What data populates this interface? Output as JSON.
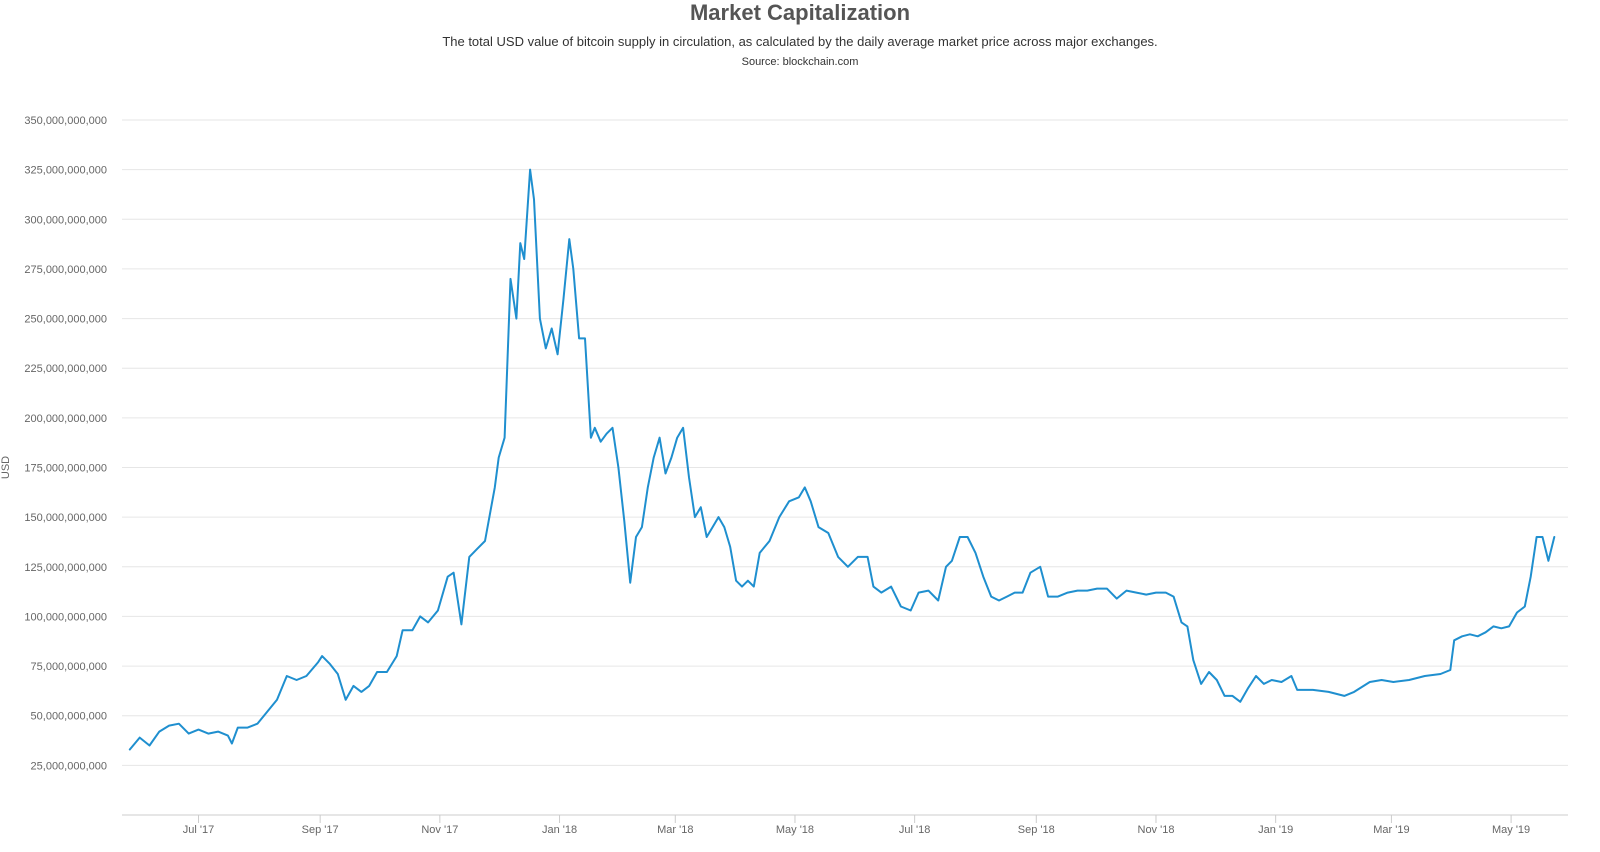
{
  "chart_data": {
    "type": "line",
    "title": "Market Capitalization",
    "subtitle": "The total USD value of bitcoin supply in circulation, as calculated by the daily average market price across major exchanges.",
    "source": "Source: blockchain.com",
    "xlabel": "",
    "ylabel": "USD",
    "ylim": [
      0,
      350000000000
    ],
    "y_ticks": [
      {
        "value": 25000000000,
        "label": "25,000,000,000"
      },
      {
        "value": 50000000000,
        "label": "50,000,000,000"
      },
      {
        "value": 75000000000,
        "label": "75,000,000,000"
      },
      {
        "value": 100000000000,
        "label": "100,000,000,000"
      },
      {
        "value": 125000000000,
        "label": "125,000,000,000"
      },
      {
        "value": 150000000000,
        "label": "150,000,000,000"
      },
      {
        "value": 175000000000,
        "label": "175,000,000,000"
      },
      {
        "value": 200000000000,
        "label": "200,000,000,000"
      },
      {
        "value": 225000000000,
        "label": "225,000,000,000"
      },
      {
        "value": 250000000000,
        "label": "250,000,000,000"
      },
      {
        "value": 275000000000,
        "label": "275,000,000,000"
      },
      {
        "value": 300000000000,
        "label": "300,000,000,000"
      },
      {
        "value": 325000000000,
        "label": "325,000,000,000"
      },
      {
        "value": 350000000000,
        "label": "350,000,000,000"
      }
    ],
    "x_range": [
      "2017-05-23",
      "2019-05-30"
    ],
    "x_ticks": [
      {
        "date": "2017-07-01",
        "label": "Jul '17"
      },
      {
        "date": "2017-09-01",
        "label": "Sep '17"
      },
      {
        "date": "2017-11-01",
        "label": "Nov '17"
      },
      {
        "date": "2018-01-01",
        "label": "Jan '18"
      },
      {
        "date": "2018-03-01",
        "label": "Mar '18"
      },
      {
        "date": "2018-05-01",
        "label": "May '18"
      },
      {
        "date": "2018-07-01",
        "label": "Jul '18"
      },
      {
        "date": "2018-09-01",
        "label": "Sep '18"
      },
      {
        "date": "2018-11-01",
        "label": "Nov '18"
      },
      {
        "date": "2019-01-01",
        "label": "Jan '19"
      },
      {
        "date": "2019-03-01",
        "label": "Mar '19"
      },
      {
        "date": "2019-05-01",
        "label": "May '19"
      }
    ],
    "grid": true,
    "legend": "none",
    "line_color": "#1f8fcf",
    "grid_color": "#e6e6e6",
    "series": [
      {
        "points": [
          [
            "2017-05-27",
            33000000000
          ],
          [
            "2017-06-01",
            39000000000
          ],
          [
            "2017-06-06",
            35000000000
          ],
          [
            "2017-06-11",
            42000000000
          ],
          [
            "2017-06-16",
            45000000000
          ],
          [
            "2017-06-21",
            46000000000
          ],
          [
            "2017-06-26",
            41000000000
          ],
          [
            "2017-07-01",
            43000000000
          ],
          [
            "2017-07-06",
            41000000000
          ],
          [
            "2017-07-11",
            42000000000
          ],
          [
            "2017-07-16",
            40000000000
          ],
          [
            "2017-07-18",
            36000000000
          ],
          [
            "2017-07-21",
            44000000000
          ],
          [
            "2017-07-26",
            44000000000
          ],
          [
            "2017-07-31",
            46000000000
          ],
          [
            "2017-08-05",
            52000000000
          ],
          [
            "2017-08-10",
            58000000000
          ],
          [
            "2017-08-15",
            70000000000
          ],
          [
            "2017-08-20",
            68000000000
          ],
          [
            "2017-08-25",
            70000000000
          ],
          [
            "2017-08-31",
            77000000000
          ],
          [
            "2017-09-02",
            80000000000
          ],
          [
            "2017-09-06",
            76000000000
          ],
          [
            "2017-09-10",
            71000000000
          ],
          [
            "2017-09-14",
            58000000000
          ],
          [
            "2017-09-18",
            65000000000
          ],
          [
            "2017-09-22",
            62000000000
          ],
          [
            "2017-09-26",
            65000000000
          ],
          [
            "2017-09-30",
            72000000000
          ],
          [
            "2017-10-05",
            72000000000
          ],
          [
            "2017-10-10",
            80000000000
          ],
          [
            "2017-10-13",
            93000000000
          ],
          [
            "2017-10-18",
            93000000000
          ],
          [
            "2017-10-22",
            100000000000
          ],
          [
            "2017-10-26",
            97000000000
          ],
          [
            "2017-10-31",
            103000000000
          ],
          [
            "2017-11-05",
            120000000000
          ],
          [
            "2017-11-08",
            122000000000
          ],
          [
            "2017-11-12",
            96000000000
          ],
          [
            "2017-11-16",
            130000000000
          ],
          [
            "2017-11-20",
            134000000000
          ],
          [
            "2017-11-24",
            138000000000
          ],
          [
            "2017-11-29",
            165000000000
          ],
          [
            "2017-12-01",
            180000000000
          ],
          [
            "2017-12-04",
            190000000000
          ],
          [
            "2017-12-07",
            270000000000
          ],
          [
            "2017-12-10",
            250000000000
          ],
          [
            "2017-12-12",
            288000000000
          ],
          [
            "2017-12-14",
            280000000000
          ],
          [
            "2017-12-17",
            325000000000
          ],
          [
            "2017-12-19",
            310000000000
          ],
          [
            "2017-12-22",
            250000000000
          ],
          [
            "2017-12-25",
            235000000000
          ],
          [
            "2017-12-28",
            245000000000
          ],
          [
            "2017-12-31",
            232000000000
          ],
          [
            "2018-01-03",
            260000000000
          ],
          [
            "2018-01-06",
            290000000000
          ],
          [
            "2018-01-08",
            275000000000
          ],
          [
            "2018-01-11",
            240000000000
          ],
          [
            "2018-01-14",
            240000000000
          ],
          [
            "2018-01-17",
            190000000000
          ],
          [
            "2018-01-19",
            195000000000
          ],
          [
            "2018-01-22",
            188000000000
          ],
          [
            "2018-01-25",
            192000000000
          ],
          [
            "2018-01-28",
            195000000000
          ],
          [
            "2018-01-31",
            175000000000
          ],
          [
            "2018-02-03",
            148000000000
          ],
          [
            "2018-02-06",
            117000000000
          ],
          [
            "2018-02-09",
            140000000000
          ],
          [
            "2018-02-12",
            145000000000
          ],
          [
            "2018-02-15",
            165000000000
          ],
          [
            "2018-02-18",
            180000000000
          ],
          [
            "2018-02-21",
            190000000000
          ],
          [
            "2018-02-24",
            172000000000
          ],
          [
            "2018-02-27",
            180000000000
          ],
          [
            "2018-03-02",
            190000000000
          ],
          [
            "2018-03-05",
            195000000000
          ],
          [
            "2018-03-08",
            170000000000
          ],
          [
            "2018-03-11",
            150000000000
          ],
          [
            "2018-03-14",
            155000000000
          ],
          [
            "2018-03-17",
            140000000000
          ],
          [
            "2018-03-20",
            145000000000
          ],
          [
            "2018-03-23",
            150000000000
          ],
          [
            "2018-03-26",
            145000000000
          ],
          [
            "2018-03-29",
            135000000000
          ],
          [
            "2018-04-01",
            118000000000
          ],
          [
            "2018-04-04",
            115000000000
          ],
          [
            "2018-04-07",
            118000000000
          ],
          [
            "2018-04-10",
            115000000000
          ],
          [
            "2018-04-13",
            132000000000
          ],
          [
            "2018-04-18",
            138000000000
          ],
          [
            "2018-04-23",
            150000000000
          ],
          [
            "2018-04-28",
            158000000000
          ],
          [
            "2018-05-03",
            160000000000
          ],
          [
            "2018-05-06",
            165000000000
          ],
          [
            "2018-05-09",
            158000000000
          ],
          [
            "2018-05-13",
            145000000000
          ],
          [
            "2018-05-18",
            142000000000
          ],
          [
            "2018-05-23",
            130000000000
          ],
          [
            "2018-05-28",
            125000000000
          ],
          [
            "2018-06-02",
            130000000000
          ],
          [
            "2018-06-07",
            130000000000
          ],
          [
            "2018-06-10",
            115000000000
          ],
          [
            "2018-06-14",
            112000000000
          ],
          [
            "2018-06-19",
            115000000000
          ],
          [
            "2018-06-24",
            105000000000
          ],
          [
            "2018-06-29",
            103000000000
          ],
          [
            "2018-07-03",
            112000000000
          ],
          [
            "2018-07-08",
            113000000000
          ],
          [
            "2018-07-13",
            108000000000
          ],
          [
            "2018-07-17",
            125000000000
          ],
          [
            "2018-07-20",
            128000000000
          ],
          [
            "2018-07-24",
            140000000000
          ],
          [
            "2018-07-28",
            140000000000
          ],
          [
            "2018-08-01",
            132000000000
          ],
          [
            "2018-08-05",
            120000000000
          ],
          [
            "2018-08-09",
            110000000000
          ],
          [
            "2018-08-13",
            108000000000
          ],
          [
            "2018-08-17",
            110000000000
          ],
          [
            "2018-08-21",
            112000000000
          ],
          [
            "2018-08-25",
            112000000000
          ],
          [
            "2018-08-29",
            122000000000
          ],
          [
            "2018-09-03",
            125000000000
          ],
          [
            "2018-09-07",
            110000000000
          ],
          [
            "2018-09-12",
            110000000000
          ],
          [
            "2018-09-17",
            112000000000
          ],
          [
            "2018-09-22",
            113000000000
          ],
          [
            "2018-09-27",
            113000000000
          ],
          [
            "2018-10-02",
            114000000000
          ],
          [
            "2018-10-07",
            114000000000
          ],
          [
            "2018-10-12",
            109000000000
          ],
          [
            "2018-10-17",
            113000000000
          ],
          [
            "2018-10-22",
            112000000000
          ],
          [
            "2018-10-27",
            111000000000
          ],
          [
            "2018-11-01",
            112000000000
          ],
          [
            "2018-11-06",
            112000000000
          ],
          [
            "2018-11-10",
            110000000000
          ],
          [
            "2018-11-14",
            97000000000
          ],
          [
            "2018-11-17",
            95000000000
          ],
          [
            "2018-11-20",
            78000000000
          ],
          [
            "2018-11-24",
            66000000000
          ],
          [
            "2018-11-28",
            72000000000
          ],
          [
            "2018-12-02",
            68000000000
          ],
          [
            "2018-12-06",
            60000000000
          ],
          [
            "2018-12-10",
            60000000000
          ],
          [
            "2018-12-14",
            57000000000
          ],
          [
            "2018-12-18",
            64000000000
          ],
          [
            "2018-12-22",
            70000000000
          ],
          [
            "2018-12-26",
            66000000000
          ],
          [
            "2018-12-30",
            68000000000
          ],
          [
            "2019-01-04",
            67000000000
          ],
          [
            "2019-01-09",
            70000000000
          ],
          [
            "2019-01-12",
            63000000000
          ],
          [
            "2019-01-20",
            63000000000
          ],
          [
            "2019-01-28",
            62000000000
          ],
          [
            "2019-02-05",
            60000000000
          ],
          [
            "2019-02-10",
            62000000000
          ],
          [
            "2019-02-18",
            67000000000
          ],
          [
            "2019-02-24",
            68000000000
          ],
          [
            "2019-03-02",
            67000000000
          ],
          [
            "2019-03-10",
            68000000000
          ],
          [
            "2019-03-18",
            70000000000
          ],
          [
            "2019-03-26",
            71000000000
          ],
          [
            "2019-03-31",
            73000000000
          ],
          [
            "2019-04-02",
            88000000000
          ],
          [
            "2019-04-06",
            90000000000
          ],
          [
            "2019-04-10",
            91000000000
          ],
          [
            "2019-04-14",
            90000000000
          ],
          [
            "2019-04-18",
            92000000000
          ],
          [
            "2019-04-22",
            95000000000
          ],
          [
            "2019-04-26",
            94000000000
          ],
          [
            "2019-04-30",
            95000000000
          ],
          [
            "2019-05-04",
            102000000000
          ],
          [
            "2019-05-08",
            105000000000
          ],
          [
            "2019-05-11",
            120000000000
          ],
          [
            "2019-05-14",
            140000000000
          ],
          [
            "2019-05-17",
            140000000000
          ],
          [
            "2019-05-20",
            128000000000
          ],
          [
            "2019-05-23",
            140000000000
          ]
        ]
      }
    ]
  }
}
